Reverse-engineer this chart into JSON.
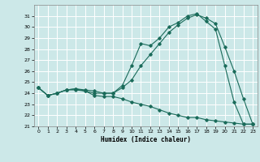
{
  "xlabel": "Humidex (Indice chaleur)",
  "ylabel": "",
  "bg_color": "#cce8e8",
  "grid_color": "#ffffff",
  "line_color": "#1a6b5a",
  "xlim": [
    -0.5,
    23.5
  ],
  "ylim": [
    21,
    32
  ],
  "yticks": [
    21,
    22,
    23,
    24,
    25,
    26,
    27,
    28,
    29,
    30,
    31
  ],
  "xticks": [
    0,
    1,
    2,
    3,
    4,
    5,
    6,
    7,
    8,
    9,
    10,
    11,
    12,
    13,
    14,
    15,
    16,
    17,
    18,
    19,
    20,
    21,
    22,
    23
  ],
  "line1_x": [
    0,
    1,
    2,
    3,
    4,
    5,
    6,
    7,
    8,
    9,
    10,
    11,
    12,
    13,
    14,
    15,
    16,
    17,
    18,
    19,
    20,
    21,
    22,
    23
  ],
  "line1_y": [
    24.5,
    23.8,
    24.0,
    24.3,
    24.3,
    24.2,
    24.0,
    24.0,
    24.0,
    24.7,
    26.5,
    28.5,
    28.3,
    29.0,
    30.0,
    30.4,
    31.0,
    31.2,
    30.5,
    29.8,
    26.5,
    23.2,
    21.2,
    21.2
  ],
  "line2_x": [
    0,
    1,
    2,
    3,
    4,
    5,
    6,
    7,
    8,
    9,
    10,
    11,
    12,
    13,
    14,
    15,
    16,
    17,
    18,
    19,
    20,
    21,
    22,
    23
  ],
  "line2_y": [
    24.5,
    23.8,
    24.0,
    24.3,
    24.4,
    24.3,
    24.2,
    24.0,
    24.0,
    24.5,
    25.2,
    26.5,
    27.5,
    28.5,
    29.5,
    30.2,
    30.8,
    31.1,
    30.8,
    30.3,
    28.2,
    26.0,
    23.5,
    21.2
  ],
  "line3_x": [
    0,
    1,
    2,
    3,
    4,
    5,
    6,
    7,
    8,
    9,
    10,
    11,
    12,
    13,
    14,
    15,
    16,
    17,
    18,
    19,
    20,
    21,
    22,
    23
  ],
  "line3_y": [
    24.5,
    23.8,
    24.0,
    24.3,
    24.4,
    24.2,
    23.8,
    23.7,
    23.7,
    23.5,
    23.2,
    23.0,
    22.8,
    22.5,
    22.2,
    22.0,
    21.8,
    21.8,
    21.6,
    21.5,
    21.4,
    21.3,
    21.2,
    21.2
  ]
}
